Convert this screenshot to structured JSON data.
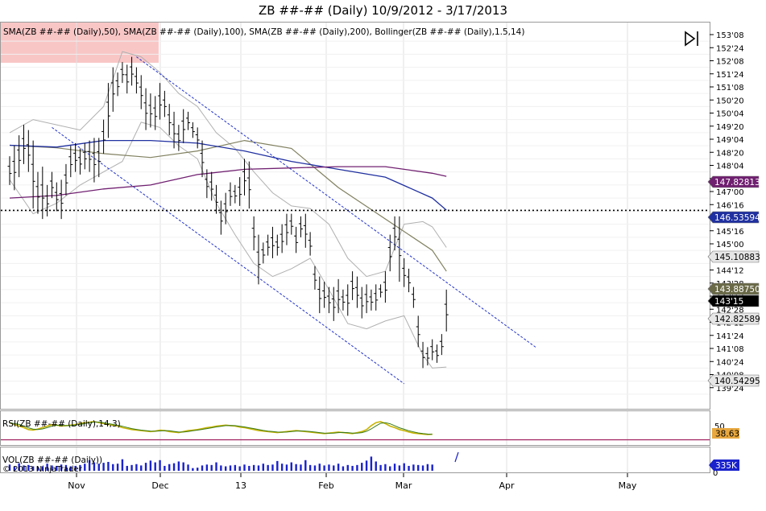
{
  "title": "ZB ##-## (Daily)  10/9/2012 - 3/17/2013",
  "colors": {
    "price_bar": "#000000",
    "sma50": "#808060",
    "sma100": "#2030a0",
    "sma200": "#702070",
    "bollinger": "#b0b0b0",
    "trendline": "#2233cc",
    "rsi_line": "#c8b400",
    "rsi_signal": "#3a7a1a",
    "rsi_level": "#a02060",
    "volume": "#1a22cc",
    "highlight": "#f8c0c0"
  },
  "main_panel": {
    "legend": "SMA(ZB ##-## (Daily),50), SMA(ZB ##-## (Daily),100), SMA(ZB ##-## (Daily),200), Bollinger(ZB ##-## (Daily),1.5,14)",
    "y_ticks": [
      "153'08",
      "152'24",
      "152'08",
      "151'24",
      "151'08",
      "150'20",
      "150'04",
      "149'20",
      "149'04",
      "148'20",
      "148'04",
      "147'16",
      "147'00",
      "146'16",
      "146'00",
      "145'16",
      "145'00",
      "144'28",
      "144'12",
      "143'28",
      "143'12",
      "142'28",
      "142'12",
      "141'24",
      "141'08",
      "140'24",
      "140'08",
      "139'24"
    ],
    "value_tags": [
      {
        "label": "147.82813",
        "bg": "#702070",
        "fg": "#ffffff"
      },
      {
        "label": "146.53594",
        "bg": "#2030a0",
        "fg": "#ffffff"
      },
      {
        "label": "145.10883",
        "bg": "#e6e6e6",
        "fg": "#000000"
      },
      {
        "label": "143.88750",
        "bg": "#6a6a48",
        "fg": "#ffffff"
      },
      {
        "label": "143'15",
        "bg": "#000000",
        "fg": "#ffffff"
      },
      {
        "label": "142.82589",
        "bg": "#e6e6e6",
        "fg": "#000000"
      },
      {
        "label": "140.54295",
        "bg": "#e6e6e6",
        "fg": "#000000"
      }
    ]
  },
  "rsi_panel": {
    "legend": "RSI(ZB ##-## (Daily),14,3)",
    "tick": "50",
    "value_tag": "38.63",
    "tag_bg": "#e8a840"
  },
  "vol_panel": {
    "legend": "VOL(ZB ##-## (Daily))",
    "watermark": "© 2013 NinjaTrader",
    "tick": "0",
    "value_tag": "335K",
    "tag_bg": "#1a22cc"
  },
  "x_axis": {
    "labels": [
      "Nov",
      "Dec",
      "13",
      "Feb",
      "Mar",
      "Apr",
      "May"
    ]
  },
  "chart_data": {
    "type": "ohlc",
    "instrument": "ZB ##-##",
    "period": "Daily",
    "date_range": "10/9/2012 - 3/17/2013",
    "bars": [
      {
        "h": 148.6,
        "l": 147.5
      },
      {
        "h": 149.0,
        "l": 147.3
      },
      {
        "h": 149.4,
        "l": 147.8
      },
      {
        "h": 149.8,
        "l": 148.3
      },
      {
        "h": 149.6,
        "l": 148.0
      },
      {
        "h": 149.2,
        "l": 146.6
      },
      {
        "h": 148.0,
        "l": 146.4
      },
      {
        "h": 148.2,
        "l": 146.2
      },
      {
        "h": 147.5,
        "l": 146.3
      },
      {
        "h": 148.0,
        "l": 147.0
      },
      {
        "h": 147.6,
        "l": 146.5
      },
      {
        "h": 147.7,
        "l": 146.2
      },
      {
        "h": 148.3,
        "l": 147.1
      },
      {
        "h": 149.0,
        "l": 147.8
      },
      {
        "h": 149.1,
        "l": 148.0
      },
      {
        "h": 148.9,
        "l": 147.9
      },
      {
        "h": 149.1,
        "l": 148.1
      },
      {
        "h": 149.2,
        "l": 148.0
      },
      {
        "h": 149.3,
        "l": 147.6
      },
      {
        "h": 149.3,
        "l": 147.8
      },
      {
        "h": 150.0,
        "l": 148.7
      },
      {
        "h": 151.4,
        "l": 149.3
      },
      {
        "h": 152.0,
        "l": 150.3
      },
      {
        "h": 151.8,
        "l": 150.9
      },
      {
        "h": 152.2,
        "l": 151.4
      },
      {
        "h": 152.1,
        "l": 151.0
      },
      {
        "h": 152.4,
        "l": 151.3
      },
      {
        "h": 152.0,
        "l": 151.0
      },
      {
        "h": 151.7,
        "l": 150.4
      },
      {
        "h": 151.2,
        "l": 149.6
      },
      {
        "h": 151.0,
        "l": 149.7
      },
      {
        "h": 150.9,
        "l": 149.6
      },
      {
        "h": 151.4,
        "l": 150.0
      },
      {
        "h": 151.1,
        "l": 150.1
      },
      {
        "h": 150.6,
        "l": 149.4
      },
      {
        "h": 150.3,
        "l": 148.9
      },
      {
        "h": 149.8,
        "l": 148.8
      },
      {
        "h": 150.4,
        "l": 149.1
      },
      {
        "h": 150.3,
        "l": 149.6
      },
      {
        "h": 149.9,
        "l": 149.3
      },
      {
        "h": 149.7,
        "l": 148.9
      },
      {
        "h": 149.2,
        "l": 147.8
      },
      {
        "h": 148.1,
        "l": 147.0
      },
      {
        "h": 148.0,
        "l": 146.9
      },
      {
        "h": 147.5,
        "l": 146.4
      },
      {
        "h": 146.9,
        "l": 145.6
      },
      {
        "h": 147.2,
        "l": 146.0
      },
      {
        "h": 147.6,
        "l": 146.7
      },
      {
        "h": 147.5,
        "l": 146.8
      },
      {
        "h": 147.8,
        "l": 146.7
      },
      {
        "h": 148.5,
        "l": 147.1
      },
      {
        "h": 148.4,
        "l": 146.6
      },
      {
        "h": 146.3,
        "l": 145.0
      },
      {
        "h": 145.6,
        "l": 143.7
      },
      {
        "h": 145.3,
        "l": 144.5
      },
      {
        "h": 145.6,
        "l": 144.8
      },
      {
        "h": 145.9,
        "l": 144.7
      },
      {
        "h": 145.6,
        "l": 144.8
      },
      {
        "h": 146.0,
        "l": 144.9
      },
      {
        "h": 146.4,
        "l": 145.2
      },
      {
        "h": 146.4,
        "l": 145.6
      },
      {
        "h": 145.9,
        "l": 144.9
      },
      {
        "h": 146.3,
        "l": 145.5
      },
      {
        "h": 146.4,
        "l": 145.1
      },
      {
        "h": 145.7,
        "l": 144.8
      },
      {
        "h": 144.4,
        "l": 143.5
      },
      {
        "h": 144.0,
        "l": 142.6
      },
      {
        "h": 143.8,
        "l": 142.8
      },
      {
        "h": 143.6,
        "l": 142.6
      },
      {
        "h": 143.6,
        "l": 142.3
      },
      {
        "h": 143.9,
        "l": 142.6
      },
      {
        "h": 143.5,
        "l": 142.7
      },
      {
        "h": 143.7,
        "l": 142.5
      },
      {
        "h": 144.2,
        "l": 143.1
      },
      {
        "h": 144.0,
        "l": 142.8
      },
      {
        "h": 143.6,
        "l": 142.4
      },
      {
        "h": 143.7,
        "l": 142.6
      },
      {
        "h": 143.5,
        "l": 142.7
      },
      {
        "h": 143.7,
        "l": 142.7
      },
      {
        "h": 143.7,
        "l": 143.2
      },
      {
        "h": 144.2,
        "l": 143.0
      },
      {
        "h": 145.6,
        "l": 144.2
      },
      {
        "h": 146.3,
        "l": 145.0
      },
      {
        "h": 146.3,
        "l": 143.8
      },
      {
        "h": 144.7,
        "l": 143.6
      },
      {
        "h": 144.3,
        "l": 143.4
      },
      {
        "h": 143.6,
        "l": 142.8
      },
      {
        "h": 142.5,
        "l": 141.3
      },
      {
        "h": 141.5,
        "l": 140.5
      },
      {
        "h": 141.3,
        "l": 140.6
      },
      {
        "h": 141.6,
        "l": 140.8
      },
      {
        "h": 141.4,
        "l": 140.7
      },
      {
        "h": 141.8,
        "l": 141.0
      },
      {
        "h": 143.5,
        "l": 141.9
      }
    ],
    "sma50": [
      [
        0,
        149.02
      ],
      [
        10,
        148.92
      ],
      [
        20,
        148.7
      ],
      [
        30,
        148.55
      ],
      [
        40,
        148.8
      ],
      [
        50,
        149.2
      ],
      [
        60,
        148.9
      ],
      [
        70,
        147.4
      ],
      [
        80,
        146.2
      ],
      [
        90,
        145.0
      ],
      [
        93,
        144.2
      ]
    ],
    "sma100": [
      [
        0,
        149.02
      ],
      [
        10,
        148.95
      ],
      [
        20,
        149.2
      ],
      [
        30,
        149.2
      ],
      [
        40,
        149.1
      ],
      [
        50,
        148.8
      ],
      [
        60,
        148.4
      ],
      [
        70,
        148.1
      ],
      [
        80,
        147.8
      ],
      [
        90,
        147.0
      ],
      [
        93,
        146.54
      ]
    ],
    "sma200": [
      [
        0,
        147.0
      ],
      [
        10,
        147.1
      ],
      [
        20,
        147.35
      ],
      [
        30,
        147.5
      ],
      [
        40,
        147.9
      ],
      [
        50,
        148.1
      ],
      [
        60,
        148.15
      ],
      [
        70,
        148.2
      ],
      [
        80,
        148.2
      ],
      [
        90,
        147.95
      ],
      [
        93,
        147.83
      ]
    ],
    "bb_upper": [
      [
        0,
        149.5
      ],
      [
        5,
        150.0
      ],
      [
        10,
        149.8
      ],
      [
        15,
        149.6
      ],
      [
        20,
        150.5
      ],
      [
        24,
        152.6
      ],
      [
        28,
        152.4
      ],
      [
        32,
        151.8
      ],
      [
        36,
        151.0
      ],
      [
        40,
        150.5
      ],
      [
        44,
        149.5
      ],
      [
        48,
        148.9
      ],
      [
        52,
        148.0
      ],
      [
        56,
        147.2
      ],
      [
        60,
        146.7
      ],
      [
        64,
        146.6
      ],
      [
        68,
        146.0
      ],
      [
        72,
        144.7
      ],
      [
        76,
        144.0
      ],
      [
        80,
        144.2
      ],
      [
        84,
        146.0
      ],
      [
        88,
        146.1
      ],
      [
        90,
        145.9
      ],
      [
        93,
        145.11
      ]
    ],
    "bb_lower": [
      [
        0,
        147.7
      ],
      [
        5,
        146.4
      ],
      [
        10,
        146.8
      ],
      [
        15,
        147.5
      ],
      [
        20,
        148.0
      ],
      [
        24,
        148.4
      ],
      [
        28,
        149.9
      ],
      [
        32,
        149.7
      ],
      [
        36,
        149.0
      ],
      [
        40,
        148.5
      ],
      [
        44,
        146.8
      ],
      [
        48,
        145.6
      ],
      [
        52,
        144.5
      ],
      [
        56,
        144.0
      ],
      [
        60,
        144.3
      ],
      [
        64,
        144.7
      ],
      [
        68,
        143.5
      ],
      [
        72,
        142.2
      ],
      [
        76,
        142.0
      ],
      [
        80,
        142.3
      ],
      [
        84,
        142.5
      ],
      [
        88,
        141.0
      ],
      [
        90,
        140.5
      ],
      [
        93,
        140.54
      ]
    ],
    "trendlines": [
      {
        "from": [
          27,
          152.4
        ],
        "to": [
          112,
          141.3
        ]
      },
      {
        "from": [
          9,
          149.7
        ],
        "to": [
          84,
          139.9
        ]
      }
    ],
    "reference_level": 146.53,
    "rsi": [
      62,
      58,
      55,
      52,
      48,
      47,
      49,
      52,
      55,
      58,
      57,
      55,
      56,
      57,
      58,
      60,
      62,
      63,
      64,
      62,
      60,
      58,
      57,
      55,
      52,
      50,
      48,
      47,
      46,
      45,
      44,
      45,
      47,
      46,
      44,
      43,
      42,
      44,
      46,
      47,
      48,
      50,
      52,
      53,
      55,
      56,
      57,
      56,
      55,
      53,
      52,
      50,
      48,
      46,
      45,
      44,
      43,
      42,
      43,
      44,
      45,
      46,
      45,
      44,
      43,
      42,
      41,
      40,
      41,
      42,
      43,
      42,
      41,
      40,
      42,
      44,
      48,
      56,
      62,
      64,
      60,
      55,
      52,
      48,
      46,
      43,
      41,
      40,
      39,
      38,
      38.63
    ],
    "volume": [
      1.4,
      0.9,
      1.7,
      1.2,
      1.3,
      1.0,
      0.9,
      1.0,
      1.6,
      1.2,
      1.1,
      1.4,
      1.3,
      1.0,
      1.1,
      1.3,
      1.6,
      2.4,
      1.9,
      1.6,
      1.8,
      2.0,
      1.5,
      1.6,
      2.6,
      1.1,
      1.3,
      1.5,
      1.2,
      1.8,
      2.3,
      1.9,
      2.4,
      1.1,
      1.5,
      1.7,
      2.1,
      1.9,
      1.4,
      0.6,
      0.7,
      1.2,
      1.4,
      1.3,
      1.9,
      1.2,
      1.0,
      1.2,
      1.3,
      1.0,
      1.4,
      1.1,
      1.3,
      1.2,
      1.6,
      1.3,
      1.4,
      2.2,
      1.6,
      1.4,
      1.9,
      1.5,
      1.4,
      2.4,
      1.3,
      1.2,
      1.6,
      1.2,
      1.4,
      1.2,
      1.6,
      1.0,
      1.3,
      1.1,
      1.3,
      1.8,
      2.3,
      3.2,
      2.1,
      1.3,
      1.5,
      1.0,
      1.6,
      1.2,
      1.7,
      1.1,
      1.4,
      1.3,
      1.2,
      1.5,
      1.4
    ]
  }
}
